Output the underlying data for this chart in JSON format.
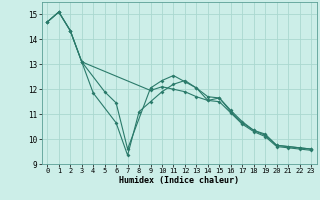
{
  "xlabel": "Humidex (Indice chaleur)",
  "bg_color": "#cceee8",
  "grid_color": "#aad8d0",
  "line_color": "#2a7a6a",
  "xlim": [
    -0.5,
    23.5
  ],
  "ylim": [
    9,
    15.5
  ],
  "yticks": [
    9,
    10,
    11,
    12,
    13,
    14,
    15
  ],
  "xticks": [
    0,
    1,
    2,
    3,
    4,
    5,
    6,
    7,
    8,
    9,
    10,
    11,
    12,
    13,
    14,
    15,
    16,
    17,
    18,
    19,
    20,
    21,
    22,
    23
  ],
  "line1_x": [
    0,
    1,
    2,
    3,
    4,
    6,
    7,
    8,
    9,
    10,
    11,
    12,
    13,
    14,
    15,
    16,
    17,
    18,
    19,
    20,
    21,
    22,
    23
  ],
  "line1_y": [
    14.7,
    15.1,
    14.35,
    13.1,
    11.85,
    10.65,
    9.35,
    11.1,
    11.5,
    11.9,
    12.2,
    12.35,
    12.05,
    11.55,
    11.65,
    11.15,
    10.7,
    10.35,
    10.15,
    9.75,
    9.7,
    9.65,
    9.6
  ],
  "line2_x": [
    0,
    1,
    2,
    3,
    5,
    6,
    7,
    9,
    10,
    11,
    12,
    13,
    14,
    15,
    16,
    17,
    18,
    19,
    20,
    21,
    22,
    23
  ],
  "line2_y": [
    14.7,
    15.1,
    14.35,
    13.1,
    11.9,
    11.45,
    9.6,
    12.05,
    12.35,
    12.55,
    12.3,
    12.05,
    11.7,
    11.65,
    11.1,
    10.65,
    10.35,
    10.2,
    9.75,
    9.7,
    9.65,
    9.6
  ],
  "line3_x": [
    0,
    1,
    2,
    3,
    9,
    10,
    11,
    12,
    13,
    14,
    15,
    16,
    17,
    18,
    19,
    20,
    21,
    22,
    23
  ],
  "line3_y": [
    14.7,
    15.1,
    14.35,
    13.1,
    11.95,
    12.1,
    12.0,
    11.9,
    11.7,
    11.55,
    11.5,
    11.05,
    10.6,
    10.3,
    10.1,
    9.7,
    9.65,
    9.6,
    9.55
  ]
}
